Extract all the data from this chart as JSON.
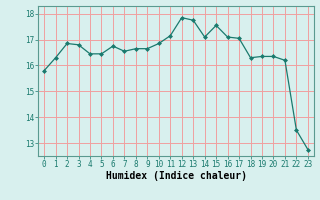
{
  "x": [
    0,
    1,
    2,
    3,
    4,
    5,
    6,
    7,
    8,
    9,
    10,
    11,
    12,
    13,
    14,
    15,
    16,
    17,
    18,
    19,
    20,
    21,
    22,
    23
  ],
  "y": [
    15.8,
    16.3,
    16.85,
    16.8,
    16.45,
    16.45,
    16.75,
    16.55,
    16.65,
    16.65,
    16.85,
    17.15,
    17.85,
    17.75,
    17.1,
    17.55,
    17.1,
    17.05,
    16.3,
    16.35,
    16.35,
    16.2,
    13.5,
    12.75
  ],
  "line_color": "#1a7a6e",
  "marker": "D",
  "markersize": 2.0,
  "linewidth": 0.9,
  "bg_color": "#d8f0ee",
  "grid_color": "#f0a0a0",
  "xlabel": "Humidex (Indice chaleur)",
  "ylabel_ticks": [
    13,
    14,
    15,
    16,
    17,
    18
  ],
  "xlabel_ticks": [
    0,
    1,
    2,
    3,
    4,
    5,
    6,
    7,
    8,
    9,
    10,
    11,
    12,
    13,
    14,
    15,
    16,
    17,
    18,
    19,
    20,
    21,
    22,
    23
  ],
  "ylim": [
    12.5,
    18.3
  ],
  "xlim": [
    -0.5,
    23.5
  ],
  "tick_fontsize": 5.5,
  "xlabel_fontsize": 7.0
}
